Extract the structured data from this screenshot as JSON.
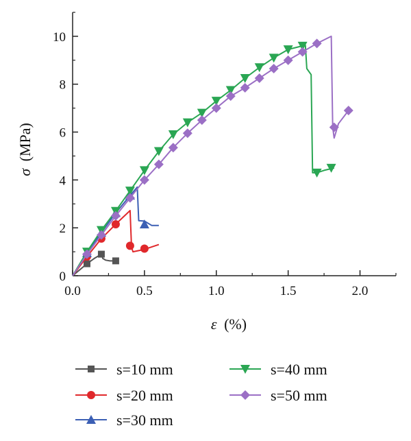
{
  "chart_data": {
    "type": "line",
    "xlabel_symbol": "ε",
    "xlabel_unit": "(%)",
    "ylabel_symbol": "σ",
    "ylabel_unit": "(MPa)",
    "xlim": [
      0,
      2.25
    ],
    "ylim": [
      0,
      11
    ],
    "x_ticks": [
      0.0,
      0.5,
      1.0,
      1.5,
      2.0
    ],
    "x_tick_labels": [
      "0.0",
      "0.5",
      "1.0",
      "1.5",
      "2.0"
    ],
    "y_ticks": [
      0,
      2,
      4,
      6,
      8,
      10
    ],
    "y_tick_labels": [
      "0",
      "2",
      "4",
      "6",
      "8",
      "10"
    ],
    "grid": false,
    "legend_position": "bottom",
    "series": [
      {
        "name": "s=10 mm",
        "color": "#555555",
        "marker": "square",
        "curve": [
          [
            0,
            0
          ],
          [
            0.05,
            0.25
          ],
          [
            0.1,
            0.5
          ],
          [
            0.15,
            0.72
          ],
          [
            0.2,
            0.9
          ],
          [
            0.21,
            0.72
          ],
          [
            0.23,
            0.65
          ],
          [
            0.26,
            0.62
          ],
          [
            0.3,
            0.62
          ]
        ],
        "markers": [
          [
            0.1,
            0.5
          ],
          [
            0.2,
            0.9
          ],
          [
            0.3,
            0.62
          ]
        ]
      },
      {
        "name": "s=20 mm",
        "color": "#e0282b",
        "marker": "circle",
        "curve": [
          [
            0,
            0
          ],
          [
            0.1,
            0.8
          ],
          [
            0.2,
            1.55
          ],
          [
            0.3,
            2.15
          ],
          [
            0.4,
            2.72
          ],
          [
            0.41,
            1.2
          ],
          [
            0.42,
            1.0
          ],
          [
            0.5,
            1.1
          ],
          [
            0.6,
            1.3
          ]
        ],
        "markers": [
          [
            0.1,
            0.8
          ],
          [
            0.2,
            1.55
          ],
          [
            0.3,
            2.15
          ],
          [
            0.4,
            1.25
          ],
          [
            0.5,
            1.13
          ]
        ]
      },
      {
        "name": "s=30 mm",
        "color": "#3b5fb4",
        "marker": "triangle-up",
        "curve": [
          [
            0,
            0
          ],
          [
            0.1,
            0.95
          ],
          [
            0.2,
            1.8
          ],
          [
            0.3,
            2.62
          ],
          [
            0.4,
            3.35
          ],
          [
            0.45,
            3.7
          ],
          [
            0.46,
            2.3
          ],
          [
            0.5,
            2.28
          ],
          [
            0.55,
            2.1
          ],
          [
            0.6,
            2.1
          ]
        ],
        "markers": [
          [
            0.1,
            0.95
          ],
          [
            0.2,
            1.8
          ],
          [
            0.3,
            2.62
          ],
          [
            0.4,
            3.35
          ],
          [
            0.5,
            2.15
          ]
        ]
      },
      {
        "name": "s=40 mm",
        "color": "#2aa653",
        "marker": "triangle-down",
        "curve": [
          [
            0,
            0
          ],
          [
            0.1,
            1.0
          ],
          [
            0.2,
            1.9
          ],
          [
            0.3,
            2.7
          ],
          [
            0.4,
            3.55
          ],
          [
            0.5,
            4.4
          ],
          [
            0.6,
            5.2
          ],
          [
            0.7,
            5.9
          ],
          [
            0.8,
            6.4
          ],
          [
            0.9,
            6.8
          ],
          [
            1.0,
            7.3
          ],
          [
            1.1,
            7.75
          ],
          [
            1.2,
            8.25
          ],
          [
            1.3,
            8.7
          ],
          [
            1.4,
            9.1
          ],
          [
            1.5,
            9.45
          ],
          [
            1.6,
            9.6
          ],
          [
            1.62,
            9.62
          ],
          [
            1.63,
            8.65
          ],
          [
            1.66,
            8.4
          ],
          [
            1.67,
            4.3
          ],
          [
            1.7,
            4.3
          ],
          [
            1.75,
            4.4
          ],
          [
            1.82,
            4.5
          ]
        ],
        "markers": [
          [
            0.1,
            1.0
          ],
          [
            0.2,
            1.9
          ],
          [
            0.3,
            2.7
          ],
          [
            0.4,
            3.55
          ],
          [
            0.5,
            4.4
          ],
          [
            0.6,
            5.2
          ],
          [
            0.7,
            5.9
          ],
          [
            0.8,
            6.4
          ],
          [
            0.9,
            6.8
          ],
          [
            1.0,
            7.3
          ],
          [
            1.1,
            7.75
          ],
          [
            1.2,
            8.25
          ],
          [
            1.3,
            8.7
          ],
          [
            1.4,
            9.1
          ],
          [
            1.5,
            9.45
          ],
          [
            1.6,
            9.6
          ],
          [
            1.7,
            4.3
          ],
          [
            1.8,
            4.5
          ]
        ]
      },
      {
        "name": "s=50 mm",
        "color": "#9b6fc5",
        "marker": "diamond",
        "curve": [
          [
            0,
            0
          ],
          [
            0.1,
            0.9
          ],
          [
            0.2,
            1.7
          ],
          [
            0.3,
            2.5
          ],
          [
            0.4,
            3.25
          ],
          [
            0.5,
            4.0
          ],
          [
            0.6,
            4.65
          ],
          [
            0.7,
            5.35
          ],
          [
            0.8,
            5.95
          ],
          [
            0.9,
            6.5
          ],
          [
            1.0,
            7.0
          ],
          [
            1.1,
            7.5
          ],
          [
            1.2,
            7.85
          ],
          [
            1.3,
            8.25
          ],
          [
            1.4,
            8.65
          ],
          [
            1.5,
            9.0
          ],
          [
            1.6,
            9.35
          ],
          [
            1.7,
            9.7
          ],
          [
            1.75,
            9.85
          ],
          [
            1.8,
            10.0
          ],
          [
            1.81,
            6.2
          ],
          [
            1.82,
            5.75
          ],
          [
            1.85,
            6.35
          ],
          [
            1.92,
            6.9
          ]
        ],
        "markers": [
          [
            0.1,
            0.9
          ],
          [
            0.2,
            1.7
          ],
          [
            0.3,
            2.5
          ],
          [
            0.4,
            3.25
          ],
          [
            0.5,
            4.0
          ],
          [
            0.6,
            4.65
          ],
          [
            0.7,
            5.35
          ],
          [
            0.8,
            5.95
          ],
          [
            0.9,
            6.5
          ],
          [
            1.0,
            7.0
          ],
          [
            1.1,
            7.5
          ],
          [
            1.2,
            7.85
          ],
          [
            1.3,
            8.25
          ],
          [
            1.4,
            8.65
          ],
          [
            1.5,
            9.0
          ],
          [
            1.6,
            9.35
          ],
          [
            1.7,
            9.7
          ],
          [
            1.82,
            6.2
          ],
          [
            1.92,
            6.9
          ]
        ]
      }
    ]
  }
}
